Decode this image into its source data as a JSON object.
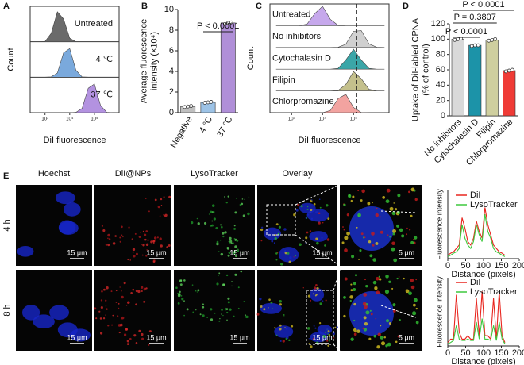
{
  "panel_labels": [
    "A",
    "B",
    "C",
    "D",
    "E"
  ],
  "panel_e": {
    "columns": [
      "Hoechst",
      "DiI@NPs",
      "LysoTracker",
      "Overlay"
    ],
    "rows": [
      "4 h",
      "8 h"
    ],
    "scale_bar_labels": [
      [
        "15 μm",
        "15 μm",
        "15 μm",
        "15 μm",
        "5 μm"
      ],
      [
        "15 μm",
        "15 μm",
        "15 μm",
        "15 μm",
        "5 μm"
      ]
    ]
  },
  "chart_data": [
    {
      "type": "ridgeline",
      "xlabel": "DiI fluorescence",
      "ylabel": "Count",
      "log_x": true,
      "xlim": [
        250,
        1000000
      ],
      "ylim": [
        0,
        100
      ],
      "xticks": [
        {
          "value": 1000,
          "label": "10³"
        },
        {
          "value": 10000,
          "label": "10⁴"
        },
        {
          "value": 100000,
          "label": "10⁵"
        }
      ],
      "x": [
        316,
        562,
        1000,
        1778,
        3162,
        5623,
        10000,
        17783,
        31623,
        56234,
        100000,
        177828,
        316228,
        562341,
        1000000
      ],
      "series": [
        {
          "name": "Untreated",
          "color": "#6b6b6b",
          "values": [
            0,
            0,
            1,
            26,
            92,
            70,
            11,
            0,
            0,
            0,
            0,
            0,
            0,
            0,
            0
          ]
        },
        {
          "name": "4 ℃",
          "color": "#7aa9dc",
          "values": [
            0,
            0,
            0,
            1,
            13,
            75,
            88,
            22,
            1,
            0,
            0,
            0,
            0,
            0,
            0
          ]
        },
        {
          "name": "37 ℃",
          "color": "#b392e0",
          "values": [
            0,
            0,
            0,
            0,
            0,
            0,
            0,
            1,
            13,
            75,
            88,
            22,
            1,
            0,
            0
          ]
        }
      ]
    },
    {
      "type": "bar",
      "ylabel": [
        "Average fluorescence",
        "intensity (×10⁴)"
      ],
      "categories": [
        "Negative",
        "4 °C",
        "37 °C"
      ],
      "values": [
        0.6,
        1.0,
        8.7
      ],
      "points": [
        [
          0.55,
          0.6,
          0.65
        ],
        [
          0.95,
          1.0,
          1.05
        ],
        [
          8.6,
          8.7,
          8.75
        ]
      ],
      "colors": [
        "#bfbfbf",
        "#9dc3e6",
        "#b08fd8"
      ],
      "ylim": [
        0,
        10
      ],
      "yticks": [
        0,
        2,
        4,
        6,
        8,
        10
      ],
      "annotations": [
        "P < 0.0001"
      ]
    },
    {
      "type": "ridgeline",
      "xlabel": "DiI fluorescence",
      "ylabel": "Count",
      "log_x": true,
      "xlim": [
        200,
        1400000
      ],
      "ylim": [
        0,
        100
      ],
      "vline": 125000,
      "xticks": [
        {
          "value": 1000,
          "label": "10³"
        },
        {
          "value": 10000,
          "label": "10⁴"
        },
        {
          "value": 100000,
          "label": "10⁵"
        }
      ],
      "x": [
        316,
        562,
        1000,
        1778,
        3162,
        5623,
        10000,
        17783,
        31623,
        56234,
        100000,
        177828,
        316228,
        562341,
        1000000
      ],
      "series": [
        {
          "name": "Untreated",
          "color": "#c6a8ec",
          "values": [
            0,
            0,
            0,
            0,
            8,
            61,
            97,
            32,
            2,
            0,
            0,
            0,
            0,
            0,
            0
          ]
        },
        {
          "name": "No inhibitors",
          "color": "#d0d0d0",
          "values": [
            0,
            0,
            0,
            0,
            0,
            0,
            0,
            0,
            1,
            16,
            81,
            84,
            18,
            1,
            0
          ]
        },
        {
          "name": "Cytochalasin D",
          "color": "#3aa6a8",
          "values": [
            0,
            0,
            0,
            0,
            0,
            0,
            0,
            0,
            4,
            46,
            100,
            46,
            4,
            0,
            0
          ]
        },
        {
          "name": "Filipin",
          "color": "#c4c08c",
          "values": [
            0,
            0,
            0,
            0,
            0,
            0,
            0,
            0,
            2,
            32,
            97,
            61,
            8,
            0,
            0
          ]
        },
        {
          "name": "Chlorpromazine",
          "color": "#f2a3a0",
          "values": [
            0,
            0,
            0,
            0,
            0,
            0,
            0,
            11,
            70,
            92,
            26,
            1,
            0,
            0,
            0
          ]
        }
      ]
    },
    {
      "type": "bar",
      "ylabel": [
        "Uptake of DiI-labled CPNA",
        "(% of control)"
      ],
      "categories": [
        "No inhibitors",
        "Cytochalasin D",
        "Filipin",
        "Chlorpromazine"
      ],
      "values": [
        100,
        92,
        99,
        59
      ],
      "points": [
        [
          99,
          100,
          101
        ],
        [
          91,
          92,
          92
        ],
        [
          98,
          99,
          100
        ],
        [
          58,
          59,
          60
        ]
      ],
      "colors": [
        "#d9d9d9",
        "#1c93a8",
        "#cfcf9f",
        "#ef3b36"
      ],
      "ylim": [
        0,
        120
      ],
      "yticks": [
        0,
        20,
        40,
        60,
        80,
        100,
        120
      ],
      "annotations": [
        "P < 0.0001",
        "P = 0.3807",
        "P < 0.0001"
      ]
    },
    {
      "type": "line",
      "xlabel": "Distance (pixels)",
      "ylabel": "Fluorescence intensity",
      "xlim": [
        0,
        200
      ],
      "xticks": [
        0,
        50,
        100,
        150,
        200
      ],
      "ylim": [
        0,
        100
      ],
      "x": [
        0,
        8,
        16,
        24,
        32,
        40,
        48,
        56,
        64,
        72,
        80,
        88,
        96,
        104,
        112,
        120,
        128,
        136,
        144,
        152,
        160
      ],
      "series": [
        {
          "name": "DiI",
          "color": "#e8261f",
          "values": [
            5,
            8,
            10,
            15,
            20,
            60,
            45,
            25,
            20,
            30,
            55,
            40,
            30,
            75,
            50,
            35,
            20,
            15,
            10,
            8,
            5
          ]
        },
        {
          "name": "LysoTracker",
          "color": "#3ec93e",
          "values": [
            3,
            5,
            8,
            10,
            15,
            50,
            30,
            20,
            15,
            25,
            50,
            35,
            25,
            65,
            40,
            30,
            15,
            10,
            8,
            5,
            3
          ]
        }
      ]
    },
    {
      "type": "line",
      "xlabel": "Distance (pixels)",
      "ylabel": "Fluorescence intensity",
      "xlim": [
        0,
        200
      ],
      "xticks": [
        0,
        50,
        100,
        150,
        200
      ],
      "ylim": [
        0,
        100
      ],
      "x": [
        0,
        8,
        16,
        24,
        32,
        40,
        48,
        56,
        64,
        72,
        80,
        88,
        96,
        104,
        112,
        120,
        128,
        136,
        144,
        152,
        160
      ],
      "series": [
        {
          "name": "DiI",
          "color": "#e8261f",
          "values": [
            5,
            10,
            10,
            75,
            20,
            10,
            10,
            15,
            10,
            10,
            70,
            15,
            80,
            15,
            15,
            10,
            70,
            10,
            80,
            15,
            5
          ]
        },
        {
          "name": "LysoTracker",
          "color": "#3ec93e",
          "values": [
            3,
            5,
            8,
            30,
            10,
            8,
            8,
            10,
            8,
            8,
            35,
            10,
            40,
            10,
            10,
            8,
            30,
            8,
            35,
            10,
            3
          ]
        }
      ]
    }
  ]
}
